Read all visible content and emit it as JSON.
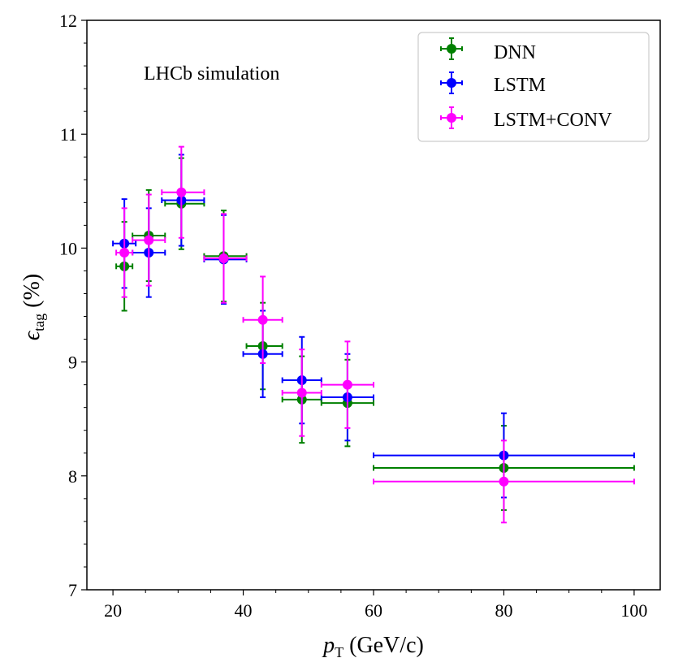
{
  "chart_data": {
    "type": "scatter",
    "annotation": "LHCb simulation",
    "xlabel": {
      "symbol": "p",
      "sub": "T",
      "unit": " (GeV/c)"
    },
    "ylabel": {
      "symbol": "ϵ",
      "sub": "tag",
      "unit": " (%)"
    },
    "xlim": [
      16,
      104
    ],
    "ylim": [
      7,
      12
    ],
    "xticks": [
      20,
      40,
      60,
      80,
      100
    ],
    "yticks": [
      7,
      8,
      9,
      10,
      11,
      12
    ],
    "x_minor_step": 5,
    "y_minor_step": 0.2,
    "legend_position": "top-right",
    "series": [
      {
        "name": "DNN",
        "color": "#008000",
        "points": [
          {
            "x": 21.75,
            "xlo": 20.5,
            "xhi": 23.0,
            "y": 9.84,
            "yerr": 0.39
          },
          {
            "x": 25.5,
            "xlo": 23.0,
            "xhi": 28.0,
            "y": 10.11,
            "yerr": 0.4
          },
          {
            "x": 30.5,
            "xlo": 28.0,
            "xhi": 34.0,
            "y": 10.39,
            "yerr": 0.4
          },
          {
            "x": 37.0,
            "xlo": 34.0,
            "xhi": 40.5,
            "y": 9.93,
            "yerr": 0.4
          },
          {
            "x": 43.0,
            "xlo": 40.5,
            "xhi": 46.0,
            "y": 9.14,
            "yerr": 0.38
          },
          {
            "x": 49.0,
            "xlo": 46.0,
            "xhi": 52.0,
            "y": 8.67,
            "yerr": 0.38
          },
          {
            "x": 56.0,
            "xlo": 52.0,
            "xhi": 60.0,
            "y": 8.64,
            "yerr": 0.38
          },
          {
            "x": 80.0,
            "xlo": 60.0,
            "xhi": 100.0,
            "y": 8.07,
            "yerr": 0.37
          }
        ]
      },
      {
        "name": "LSTM",
        "color": "#0000ff",
        "points": [
          {
            "x": 21.75,
            "xlo": 20.0,
            "xhi": 23.5,
            "y": 10.04,
            "yerr": 0.39
          },
          {
            "x": 25.5,
            "xlo": 23.0,
            "xhi": 28.0,
            "y": 9.96,
            "yerr": 0.39
          },
          {
            "x": 30.5,
            "xlo": 27.5,
            "xhi": 34.0,
            "y": 10.42,
            "yerr": 0.4
          },
          {
            "x": 37.0,
            "xlo": 34.0,
            "xhi": 40.5,
            "y": 9.9,
            "yerr": 0.39
          },
          {
            "x": 43.0,
            "xlo": 40.0,
            "xhi": 46.0,
            "y": 9.07,
            "yerr": 0.38
          },
          {
            "x": 49.0,
            "xlo": 46.0,
            "xhi": 52.0,
            "y": 8.84,
            "yerr": 0.38
          },
          {
            "x": 56.0,
            "xlo": 52.0,
            "xhi": 60.0,
            "y": 8.69,
            "yerr": 0.38
          },
          {
            "x": 80.0,
            "xlo": 60.0,
            "xhi": 100.0,
            "y": 8.18,
            "yerr": 0.37
          }
        ]
      },
      {
        "name": "LSTM+CONV",
        "color": "#ff00ff",
        "points": [
          {
            "x": 21.75,
            "xlo": 20.5,
            "xhi": 23.0,
            "y": 9.96,
            "yerr": 0.39
          },
          {
            "x": 25.5,
            "xlo": 23.0,
            "xhi": 28.0,
            "y": 10.07,
            "yerr": 0.4
          },
          {
            "x": 30.5,
            "xlo": 27.5,
            "xhi": 34.0,
            "y": 10.49,
            "yerr": 0.4
          },
          {
            "x": 37.0,
            "xlo": 34.0,
            "xhi": 40.5,
            "y": 9.91,
            "yerr": 0.39
          },
          {
            "x": 43.0,
            "xlo": 40.0,
            "xhi": 46.0,
            "y": 9.37,
            "yerr": 0.38
          },
          {
            "x": 49.0,
            "xlo": 46.0,
            "xhi": 52.0,
            "y": 8.73,
            "yerr": 0.38
          },
          {
            "x": 56.0,
            "xlo": 52.0,
            "xhi": 60.0,
            "y": 8.8,
            "yerr": 0.38
          },
          {
            "x": 80.0,
            "xlo": 60.0,
            "xhi": 100.0,
            "y": 7.95,
            "yerr": 0.36
          }
        ]
      }
    ]
  }
}
